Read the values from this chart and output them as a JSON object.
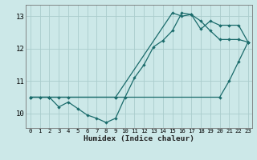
{
  "xlabel": "Humidex (Indice chaleur)",
  "bg_color": "#cce8e8",
  "grid_color": "#aacccc",
  "line_color": "#1a6b6b",
  "xlim": [
    -0.5,
    23.4
  ],
  "ylim": [
    9.55,
    13.35
  ],
  "xticks": [
    0,
    1,
    2,
    3,
    4,
    5,
    6,
    7,
    8,
    9,
    10,
    11,
    12,
    13,
    14,
    15,
    16,
    17,
    18,
    19,
    20,
    21,
    22,
    23
  ],
  "yticks": [
    10,
    11,
    12,
    13
  ],
  "line1_x": [
    0,
    1,
    2,
    9,
    20,
    21,
    22,
    23
  ],
  "line1_y": [
    10.5,
    10.5,
    10.5,
    10.5,
    10.5,
    11.0,
    11.6,
    12.2
  ],
  "line2_x": [
    0,
    2,
    3,
    4,
    5,
    6,
    7,
    8,
    9,
    10,
    11,
    12,
    13,
    14,
    15,
    16,
    17,
    18,
    19,
    20,
    21,
    22,
    23
  ],
  "line2_y": [
    10.5,
    10.5,
    10.2,
    10.35,
    10.15,
    9.95,
    9.85,
    9.72,
    9.85,
    10.5,
    11.1,
    11.5,
    12.05,
    12.25,
    12.55,
    13.1,
    13.05,
    12.85,
    12.55,
    12.28,
    12.28,
    12.28,
    12.2
  ],
  "line3_x": [
    0,
    2,
    3,
    4,
    9,
    15,
    16,
    17,
    18,
    19,
    20,
    21,
    22,
    23
  ],
  "line3_y": [
    10.5,
    10.5,
    10.5,
    10.5,
    10.5,
    13.1,
    13.0,
    13.05,
    12.6,
    12.85,
    12.72,
    12.72,
    12.72,
    12.2
  ]
}
